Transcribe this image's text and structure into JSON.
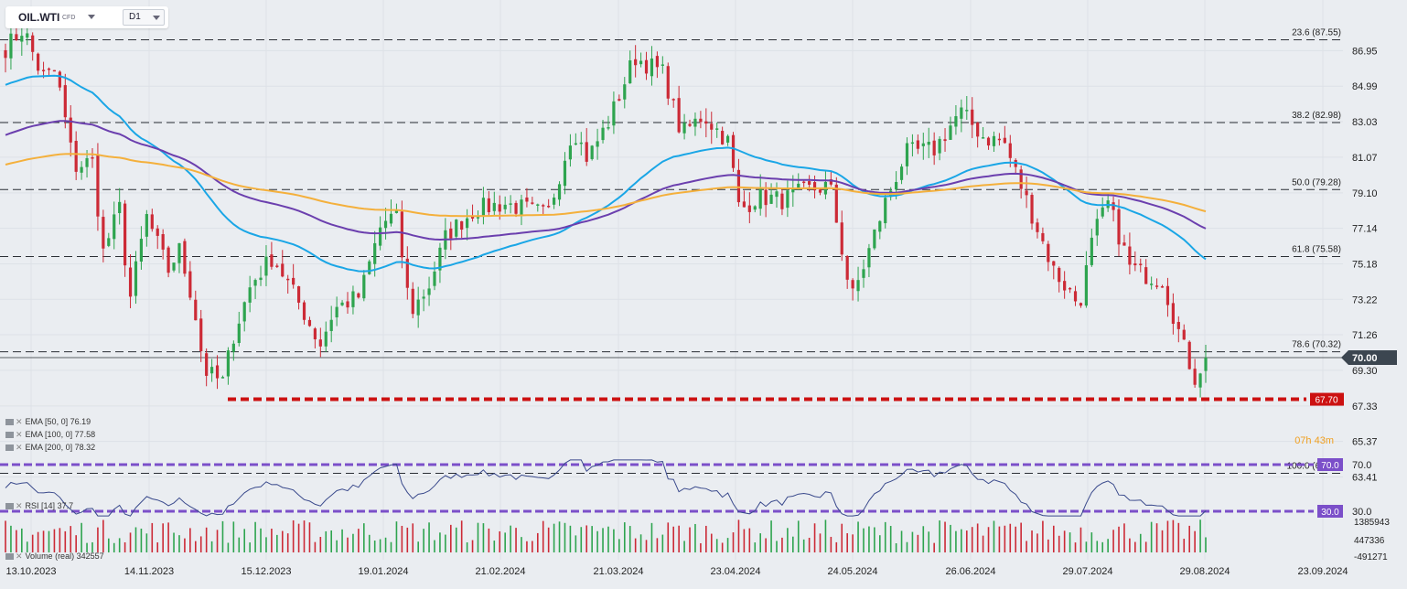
{
  "header": {
    "symbol": "OIL.WTI",
    "instrument_type": "CFD",
    "timeframe": "D1"
  },
  "countdown": "07h 43m",
  "indicators": [
    {
      "label": "EMA [50, 0]",
      "value": "76.19",
      "color": "#1aa6e6"
    },
    {
      "label": "EMA [100, 0]",
      "value": "77.58",
      "color": "#6b3fae"
    },
    {
      "label": "EMA [200, 0]",
      "value": "78.32",
      "color": "#f4b03c"
    }
  ],
  "rsi": {
    "label": "RSI [14]",
    "value": "37.7",
    "upper": "70.0",
    "lower": "30.0"
  },
  "volume": {
    "label": "Volume (real)",
    "value": "342557"
  },
  "price_axis_labels": [
    "86.95",
    "84.99",
    "83.03",
    "81.07",
    "79.10",
    "77.14",
    "75.18",
    "73.22",
    "71.26",
    "69.30",
    "67.33",
    "65.37",
    "63.41"
  ],
  "rsi_axis_labels": [
    "70.0",
    "30.0"
  ],
  "volume_axis_labels": [
    "1385943",
    "447336",
    "-491271"
  ],
  "date_labels": [
    "13.10.2023",
    "14.11.2023",
    "15.12.2023",
    "19.01.2024",
    "21.02.2024",
    "21.03.2024",
    "23.04.2024",
    "24.05.2024",
    "26.06.2024",
    "29.07.2024",
    "29.08.2024",
    "23.09.2024"
  ],
  "current_price": "70.00",
  "support_level": "67.70",
  "fib_levels": [
    {
      "label": "23.6 (87.55)",
      "value": 87.55
    },
    {
      "label": "38.2 (82.98)",
      "value": 82.98
    },
    {
      "label": "50.0 (79.28)",
      "value": 79.28
    },
    {
      "label": "61.8 (75.58)",
      "value": 75.58
    },
    {
      "label": "78.6 (70.32)",
      "value": 70.32
    },
    {
      "label": "100.0 (63.61)",
      "value": 63.61
    }
  ],
  "colors": {
    "bull": "#2ea44f",
    "bear": "#cc2a36",
    "support": "#cc1111",
    "rsi_band": "#7b4fc9",
    "rsi_line": "#3a4a8c",
    "price_tag": "#3c4650"
  },
  "chart_data": {
    "type": "candlestick",
    "timeframe": "D1",
    "ylim": [
      62.5,
      89.0
    ],
    "x_range": [
      "2023-10-13",
      "2024-09-30"
    ],
    "ema50_last": 76.19,
    "ema100_last": 77.58,
    "ema200_last": 78.32,
    "close_path": [
      [
        "2023-10-13",
        87.1
      ],
      [
        "2023-10-18",
        88.2
      ],
      [
        "2023-10-23",
        85.5
      ],
      [
        "2023-10-27",
        85.8
      ],
      [
        "2023-11-01",
        80.5
      ],
      [
        "2023-11-06",
        80.9
      ],
      [
        "2023-11-09",
        75.8
      ],
      [
        "2023-11-14",
        78.5
      ],
      [
        "2023-11-16",
        72.8
      ],
      [
        "2023-11-21",
        77.8
      ],
      [
        "2023-11-27",
        74.8
      ],
      [
        "2023-11-30",
        76.0
      ],
      [
        "2023-12-04",
        73.0
      ],
      [
        "2023-12-07",
        69.3
      ],
      [
        "2023-12-12",
        68.6
      ],
      [
        "2023-12-15",
        71.2
      ],
      [
        "2023-12-20",
        74.1
      ],
      [
        "2023-12-26",
        75.6
      ],
      [
        "2024-01-03",
        72.7
      ],
      [
        "2024-01-08",
        70.7
      ],
      [
        "2024-01-12",
        72.7
      ],
      [
        "2024-01-19",
        73.4
      ],
      [
        "2024-01-25",
        77.4
      ],
      [
        "2024-01-29",
        77.9
      ],
      [
        "2024-02-02",
        72.5
      ],
      [
        "2024-02-07",
        73.9
      ],
      [
        "2024-02-12",
        76.8
      ],
      [
        "2024-02-20",
        78.2
      ],
      [
        "2024-02-28",
        78.5
      ],
      [
        "2024-03-05",
        78.2
      ],
      [
        "2024-03-11",
        77.9
      ],
      [
        "2024-03-18",
        82.7
      ],
      [
        "2024-03-22",
        81.0
      ],
      [
        "2024-03-28",
        83.1
      ],
      [
        "2024-04-04",
        86.6
      ],
      [
        "2024-04-12",
        85.7
      ],
      [
        "2024-04-17",
        82.3
      ],
      [
        "2024-04-23",
        83.4
      ],
      [
        "2024-04-30",
        81.9
      ],
      [
        "2024-05-03",
        78.1
      ],
      [
        "2024-05-08",
        78.9
      ],
      [
        "2024-05-15",
        78.7
      ],
      [
        "2024-05-21",
        79.2
      ],
      [
        "2024-05-28",
        79.5
      ],
      [
        "2024-06-03",
        73.2
      ],
      [
        "2024-06-07",
        75.4
      ],
      [
        "2024-06-12",
        78.4
      ],
      [
        "2024-06-18",
        81.3
      ],
      [
        "2024-06-26",
        81.5
      ],
      [
        "2024-07-03",
        83.6
      ],
      [
        "2024-07-10",
        82.1
      ],
      [
        "2024-07-15",
        82.0
      ],
      [
        "2024-07-22",
        78.4
      ],
      [
        "2024-07-29",
        74.8
      ],
      [
        "2024-08-05",
        72.9
      ],
      [
        "2024-08-09",
        76.8
      ],
      [
        "2024-08-13",
        78.5
      ],
      [
        "2024-08-19",
        75.0
      ],
      [
        "2024-08-23",
        74.6
      ],
      [
        "2024-08-28",
        74.3
      ],
      [
        "2024-09-03",
        70.5
      ],
      [
        "2024-09-06",
        68.9
      ],
      [
        "2024-09-09",
        70.0
      ]
    ]
  }
}
